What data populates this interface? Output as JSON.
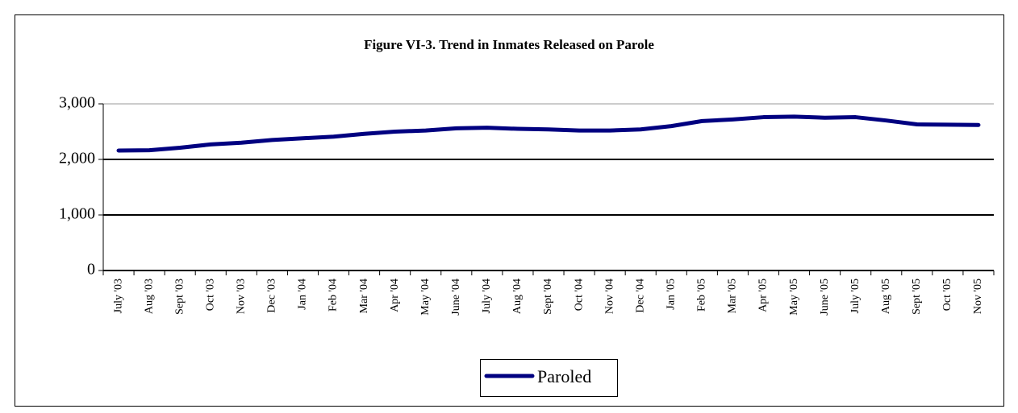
{
  "chart_data": {
    "type": "line",
    "title": "Figure VI-3.  Trend in Inmates Released on Parole",
    "categories": [
      "July '03",
      "Aug '03",
      "Sept '03",
      "Oct '03",
      "Nov '03",
      "Dec '03",
      "Jan '04",
      "Feb '04",
      "Mar '04",
      "Apr '04",
      "May '04",
      "June '04",
      "July '04",
      "Aug '04",
      "Sept '04",
      "Oct '04",
      "Nov '04",
      "Dec '04",
      "Jan '05",
      "Feb '05",
      "Mar '05",
      "Apr '05",
      "May '05",
      "June '05",
      "July '05",
      "Aug '05",
      "Sept '05",
      "Oct '05",
      "Nov '05"
    ],
    "series": [
      {
        "name": "Paroled",
        "color": "#000080",
        "values": [
          2160,
          2165,
          2210,
          2270,
          2300,
          2350,
          2380,
          2410,
          2460,
          2500,
          2520,
          2560,
          2570,
          2550,
          2540,
          2520,
          2520,
          2540,
          2600,
          2690,
          2720,
          2760,
          2770,
          2750,
          2760,
          2700,
          2630,
          2625,
          2620
        ]
      }
    ],
    "ylim": [
      0,
      3000
    ],
    "yticks": [
      0,
      {
        "value": 1000,
        "label": "1,000"
      },
      {
        "value": 2000,
        "label": "2,000"
      },
      {
        "value": 3000,
        "label": "3,000"
      }
    ],
    "grid": true,
    "legend": "bottom"
  }
}
